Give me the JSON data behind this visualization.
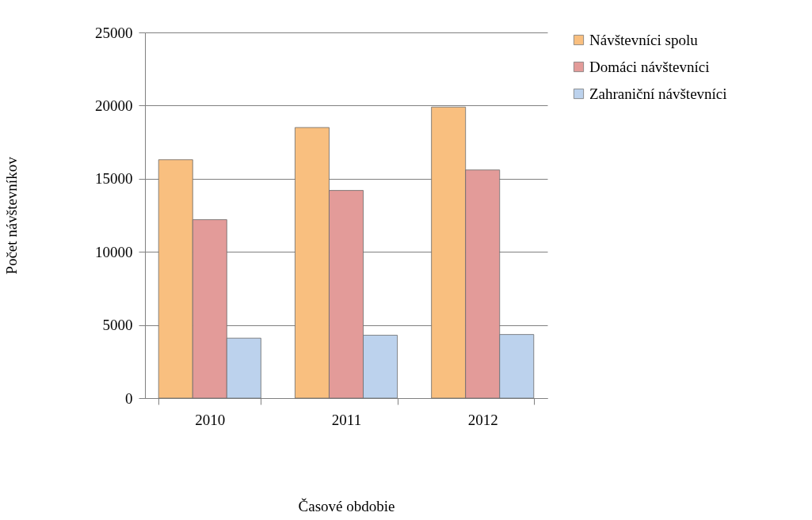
{
  "chart_data": {
    "type": "bar",
    "xlabel": "Časové obdobie",
    "ylabel": "Počet návštevníkov",
    "categories": [
      "2010",
      "2011",
      "2012"
    ],
    "series": [
      {
        "name": "Návštevníci spolu",
        "color": "#f9bf7f",
        "values": [
          16300,
          18500,
          19900
        ]
      },
      {
        "name": "Domáci návštevníci",
        "color": "#e39b99",
        "values": [
          12200,
          14200,
          15600
        ]
      },
      {
        "name": "Zahraniční návštevníci",
        "color": "#bcd2ed",
        "values": [
          4100,
          4300,
          4350
        ]
      }
    ],
    "ylim": [
      0,
      25000
    ],
    "yticks": [
      0,
      5000,
      10000,
      15000,
      20000,
      25000
    ],
    "grid": "y",
    "legend": "right"
  }
}
